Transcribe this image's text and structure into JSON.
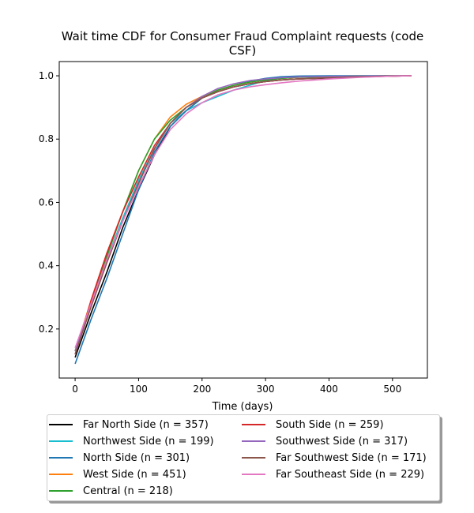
{
  "chart_data": {
    "type": "line",
    "title_line1": "Wait time CDF for Consumer Fraud Complaint  requests (code",
    "title_line2": "CSF)",
    "xlabel": "Time (days)",
    "ylabel": "",
    "xlim": [
      -25,
      555
    ],
    "ylim": [
      0.045,
      1.045
    ],
    "xticks": [
      0,
      100,
      200,
      300,
      400,
      500
    ],
    "yticks": [
      0.2,
      0.4,
      0.6,
      0.8,
      1.0
    ],
    "xtick_labels": [
      "0",
      "100",
      "200",
      "300",
      "400",
      "500"
    ],
    "ytick_labels": [
      "0.2",
      "0.4",
      "0.6",
      "0.8",
      "1.0"
    ],
    "grid": false,
    "legend_position": "below",
    "series": [
      {
        "name": "Far North Side (n = 357)",
        "color": "#000000",
        "x": [
          0,
          25,
          50,
          75,
          100,
          125,
          150,
          175,
          200,
          225,
          250,
          275,
          300,
          325,
          350,
          400,
          450,
          500,
          530
        ],
        "y": [
          0.11,
          0.25,
          0.38,
          0.52,
          0.64,
          0.75,
          0.84,
          0.89,
          0.93,
          0.95,
          0.965,
          0.975,
          0.982,
          0.987,
          0.99,
          0.993,
          0.996,
          0.999,
          1.0
        ]
      },
      {
        "name": "Northwest Side (n = 199)",
        "color": "#17becf",
        "x": [
          0,
          25,
          50,
          75,
          100,
          125,
          150,
          175,
          200,
          225,
          250,
          275,
          300,
          325,
          350,
          400,
          450,
          500,
          530
        ],
        "y": [
          0.13,
          0.28,
          0.42,
          0.55,
          0.67,
          0.77,
          0.85,
          0.89,
          0.915,
          0.935,
          0.955,
          0.97,
          0.985,
          0.993,
          0.997,
          0.999,
          1.0,
          1.0,
          1.0
        ]
      },
      {
        "name": "North Side (n = 301)",
        "color": "#1f77b4",
        "x": [
          0,
          25,
          50,
          75,
          100,
          125,
          150,
          175,
          200,
          225,
          250,
          275,
          300,
          325,
          350,
          400,
          450,
          500,
          530
        ],
        "y": [
          0.09,
          0.23,
          0.36,
          0.5,
          0.64,
          0.76,
          0.84,
          0.89,
          0.93,
          0.955,
          0.97,
          0.983,
          0.992,
          0.997,
          0.999,
          1.0,
          1.0,
          1.0,
          1.0
        ]
      },
      {
        "name": "West Side (n = 451)",
        "color": "#ff7f0e",
        "x": [
          0,
          25,
          50,
          75,
          100,
          125,
          150,
          175,
          200,
          225,
          250,
          275,
          300,
          325,
          350,
          400,
          450,
          500,
          530
        ],
        "y": [
          0.13,
          0.29,
          0.44,
          0.57,
          0.7,
          0.8,
          0.87,
          0.91,
          0.935,
          0.955,
          0.97,
          0.98,
          0.987,
          0.992,
          0.995,
          0.997,
          0.999,
          1.0,
          1.0
        ]
      },
      {
        "name": "Central (n = 218)",
        "color": "#2ca02c",
        "x": [
          0,
          25,
          50,
          75,
          100,
          125,
          150,
          175,
          200,
          225,
          250,
          275,
          300,
          325,
          350,
          400,
          450,
          500,
          530
        ],
        "y": [
          0.13,
          0.28,
          0.43,
          0.57,
          0.7,
          0.8,
          0.86,
          0.9,
          0.93,
          0.955,
          0.97,
          0.98,
          0.987,
          0.992,
          0.995,
          0.997,
          0.999,
          1.0,
          1.0
        ]
      },
      {
        "name": "South Side (n = 259)",
        "color": "#d62728",
        "x": [
          0,
          25,
          50,
          75,
          100,
          125,
          150,
          175,
          200,
          225,
          250,
          275,
          300,
          325,
          350,
          400,
          450,
          500,
          530
        ],
        "y": [
          0.12,
          0.29,
          0.44,
          0.57,
          0.68,
          0.78,
          0.85,
          0.9,
          0.93,
          0.95,
          0.965,
          0.975,
          0.982,
          0.987,
          0.99,
          0.994,
          0.997,
          0.999,
          1.0
        ]
      },
      {
        "name": "Southwest Side (n = 317)",
        "color": "#9467bd",
        "x": [
          0,
          25,
          50,
          75,
          100,
          125,
          150,
          175,
          200,
          225,
          250,
          275,
          300,
          325,
          350,
          400,
          450,
          500,
          530
        ],
        "y": [
          0.13,
          0.27,
          0.41,
          0.54,
          0.66,
          0.77,
          0.85,
          0.9,
          0.935,
          0.96,
          0.975,
          0.985,
          0.99,
          0.994,
          0.996,
          0.998,
          0.999,
          1.0,
          1.0
        ]
      },
      {
        "name": "Far Southwest Side (n = 171)",
        "color": "#8c564b",
        "x": [
          0,
          25,
          50,
          75,
          100,
          125,
          150,
          175,
          200,
          225,
          250,
          275,
          300,
          325,
          350,
          400,
          450,
          500,
          530
        ],
        "y": [
          0.12,
          0.27,
          0.41,
          0.54,
          0.66,
          0.77,
          0.85,
          0.9,
          0.93,
          0.95,
          0.965,
          0.975,
          0.982,
          0.987,
          0.99,
          0.994,
          0.997,
          0.999,
          1.0
        ]
      },
      {
        "name": "Far Southeast Side (n = 229)",
        "color": "#e377c2",
        "x": [
          0,
          25,
          50,
          75,
          100,
          125,
          150,
          175,
          200,
          225,
          250,
          275,
          300,
          325,
          350,
          400,
          450,
          500,
          530
        ],
        "y": [
          0.14,
          0.28,
          0.42,
          0.54,
          0.65,
          0.75,
          0.83,
          0.88,
          0.915,
          0.94,
          0.955,
          0.965,
          0.972,
          0.978,
          0.983,
          0.99,
          0.995,
          0.999,
          1.0
        ]
      }
    ]
  }
}
